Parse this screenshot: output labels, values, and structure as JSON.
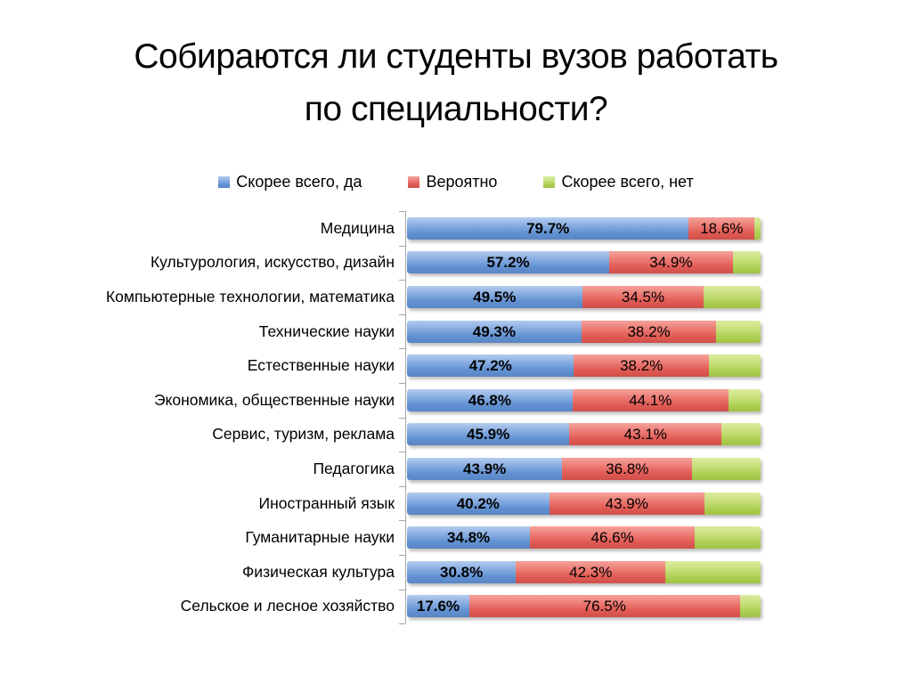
{
  "slide": {
    "title_line1": "Собираются ли студенты вузов работать",
    "title_line2": "по специальности?"
  },
  "legend": {
    "items": [
      {
        "key": "yes",
        "label": "Скорее всего, да"
      },
      {
        "key": "probably",
        "label": "Вероятно"
      },
      {
        "key": "no",
        "label": "Скорее всего, нет"
      }
    ]
  },
  "chart_data": {
    "type": "bar",
    "orientation": "horizontal",
    "stacked": true,
    "unit": "%",
    "xlim": [
      0,
      100
    ],
    "grid": false,
    "legend_position": "top",
    "title": "Собираются ли студенты вузов работать по специальности?",
    "categories": [
      "Медицина",
      "Культурология, искусство, дизайн",
      "Компьютерные технологии, математика",
      "Технические науки",
      "Естественные науки",
      "Экономика, общественные науки",
      "Сервис, туризм, реклама",
      "Педагогика",
      "Иностранный язык",
      "Гуманитарные науки",
      "Физическая культура",
      "Сельское и лесное хозяйство"
    ],
    "series": [
      {
        "key": "yes",
        "name": "Скорее всего, да",
        "base_color": "#4F81BD",
        "gradient": [
          "#b4ccef",
          "#7ea6de",
          "#6191d1",
          "#5a86c5"
        ],
        "show_labels": true,
        "labels_bold": true,
        "values": [
          79.7,
          57.2,
          49.5,
          49.3,
          47.2,
          46.8,
          45.9,
          43.9,
          40.2,
          34.8,
          30.8,
          17.6
        ]
      },
      {
        "key": "probably",
        "name": "Вероятно",
        "base_color": "#C0504D",
        "gradient": [
          "#f4a29b",
          "#ea746d",
          "#e05b54",
          "#d04f49"
        ],
        "show_labels": true,
        "labels_bold": false,
        "values": [
          18.6,
          34.9,
          34.5,
          38.2,
          38.2,
          44.1,
          43.1,
          36.8,
          43.9,
          46.6,
          42.3,
          76.5
        ]
      },
      {
        "key": "no",
        "name": "Скорее всего, нет",
        "base_color": "#9BBB59",
        "gradient": [
          "#dcec9f",
          "#c3dd74",
          "#aed055",
          "#a0c243"
        ],
        "show_labels": false,
        "labels_bold": false,
        "values": [
          1.7,
          7.9,
          16.0,
          12.5,
          14.6,
          9.1,
          11.0,
          19.3,
          15.9,
          18.6,
          26.9,
          5.9
        ]
      }
    ],
    "value_label_format": "#.#%"
  }
}
